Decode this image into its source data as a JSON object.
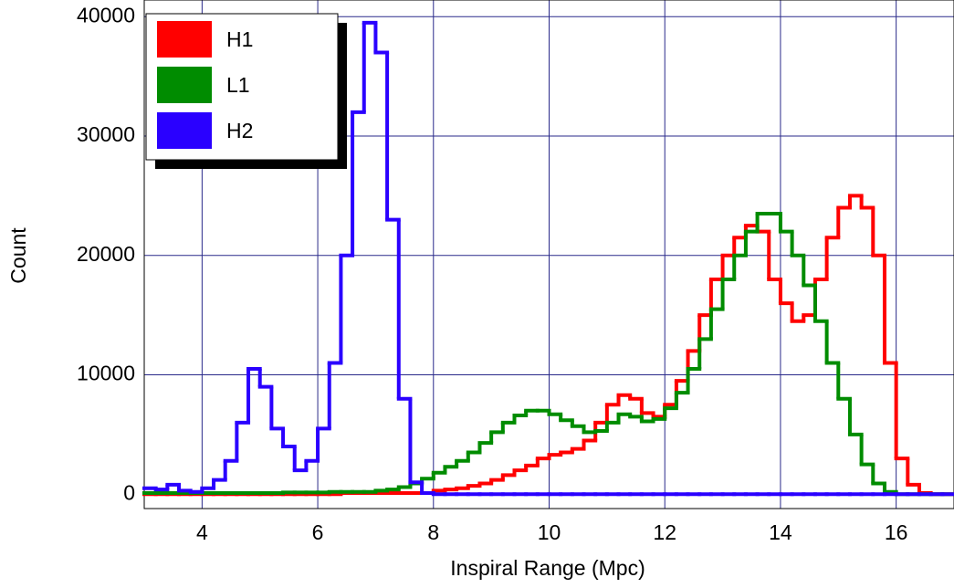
{
  "chart_data": {
    "type": "histogram",
    "xlabel": "Inspiral Range (Mpc)",
    "ylabel": "Count",
    "xlim": [
      3,
      17
    ],
    "ylim": [
      -1200,
      41400
    ],
    "xticks": [
      4,
      6,
      8,
      10,
      12,
      14,
      16
    ],
    "yticks": [
      0,
      10000,
      20000,
      30000,
      40000
    ],
    "grid": true,
    "legend": "upper left",
    "bins": [
      3,
      3.2,
      3.4,
      3.6,
      3.8,
      4,
      4.2,
      4.4,
      4.6,
      4.8,
      5,
      5.2,
      5.4,
      5.6,
      5.8,
      6,
      6.2,
      6.4,
      6.6,
      6.8,
      7,
      7.2,
      7.4,
      7.6,
      7.8,
      8,
      8.2,
      8.4,
      8.6,
      8.8,
      9,
      9.2,
      9.4,
      9.6,
      9.8,
      10,
      10.2,
      10.4,
      10.6,
      10.8,
      11,
      11.2,
      11.4,
      11.6,
      11.8,
      12,
      12.2,
      12.4,
      12.6,
      12.8,
      13,
      13.2,
      13.4,
      13.6,
      13.8,
      14,
      14.2,
      14.4,
      14.6,
      14.8,
      15,
      15.2,
      15.4,
      15.6,
      15.8,
      16,
      16.2,
      16.4,
      16.6,
      16.8,
      17
    ],
    "series": [
      {
        "name": "H1",
        "color": "#ff0000",
        "values": [
          0,
          0,
          0,
          0,
          0,
          0,
          0,
          0,
          0,
          0,
          0,
          0,
          0,
          0,
          0,
          0,
          0,
          100,
          100,
          100,
          100,
          100,
          100,
          100,
          100,
          300,
          400,
          500,
          700,
          900,
          1200,
          1600,
          2000,
          2400,
          3000,
          3300,
          3500,
          3800,
          4500,
          6000,
          7500,
          8300,
          8000,
          6800,
          6500,
          7500,
          9500,
          12000,
          15000,
          18000,
          20000,
          21500,
          22500,
          22000,
          18000,
          16000,
          14500,
          15000,
          18000,
          21500,
          24000,
          25000,
          24000,
          20000,
          11000,
          3000,
          800,
          100,
          0,
          0
        ]
      },
      {
        "name": "L1",
        "color": "#008c00",
        "values": [
          100,
          100,
          100,
          100,
          100,
          100,
          100,
          100,
          100,
          100,
          100,
          100,
          150,
          150,
          150,
          150,
          200,
          200,
          200,
          200,
          300,
          400,
          600,
          900,
          1300,
          1800,
          2300,
          2800,
          3500,
          4300,
          5200,
          6000,
          6600,
          7000,
          7000,
          6700,
          6200,
          5700,
          5200,
          5300,
          6000,
          6700,
          6500,
          6100,
          6300,
          7200,
          8500,
          10500,
          13000,
          15500,
          18000,
          20000,
          22000,
          23500,
          23500,
          22000,
          20000,
          17500,
          14500,
          11000,
          8000,
          5000,
          2500,
          900,
          200,
          0,
          0,
          0,
          0,
          0
        ]
      },
      {
        "name": "H2",
        "color": "#2a00ff",
        "values": [
          500,
          400,
          800,
          300,
          200,
          500,
          1200,
          2800,
          6000,
          10500,
          9000,
          5500,
          4000,
          2000,
          2800,
          5500,
          11000,
          20000,
          32000,
          39500,
          37000,
          23000,
          8000,
          1000,
          100,
          0,
          0,
          0,
          0,
          0,
          0,
          0,
          0,
          0,
          0,
          0,
          0,
          0,
          0,
          0,
          0,
          0,
          0,
          0,
          0,
          0,
          0,
          0,
          0,
          0,
          0,
          0,
          0,
          0,
          0,
          0,
          0,
          0,
          0,
          0,
          0,
          0,
          0,
          0,
          0,
          0,
          0,
          0,
          0,
          0
        ]
      }
    ]
  }
}
